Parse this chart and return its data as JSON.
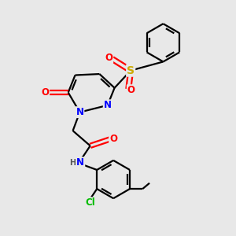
{
  "background_color": "#e8e8e8",
  "bond_color": "#000000",
  "line_width": 1.6,
  "atom_colors": {
    "N": "#0000ff",
    "O": "#ff0000",
    "S": "#ccaa00",
    "Cl": "#00bb00",
    "H": "#555555",
    "C": "#000000"
  },
  "font_size": 8.5,
  "font_size_small": 7.0,
  "font_size_S": 10.0
}
